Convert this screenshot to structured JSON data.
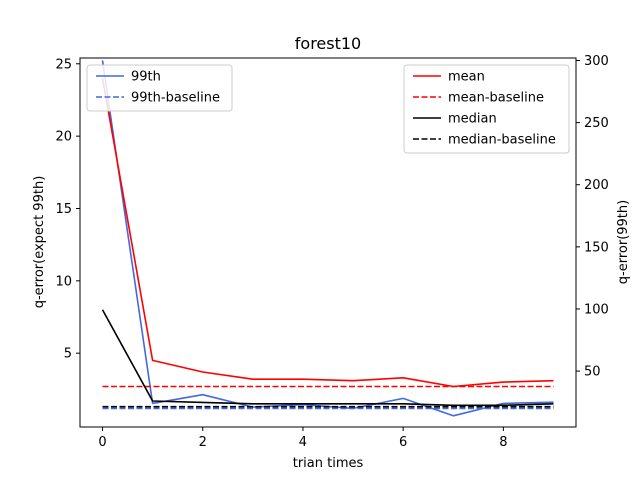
{
  "chart_data": {
    "type": "line",
    "title": "forest10",
    "xlabel": "trian times",
    "ylabel_left": "q-error(expect 99th)",
    "ylabel_right": "q-error(99th)",
    "xlim": [
      -0.45,
      9.45
    ],
    "ylim_left": [
      -0.1,
      25.4
    ],
    "ylim_right": [
      5,
      302
    ],
    "x_ticks": [
      0,
      2,
      4,
      6,
      8
    ],
    "y_ticks_left": [
      5,
      10,
      15,
      20,
      25
    ],
    "y_ticks_right": [
      50,
      100,
      150,
      200,
      250,
      300
    ],
    "x": [
      0,
      1,
      2,
      3,
      4,
      5,
      6,
      7,
      8,
      9
    ],
    "series_left": [
      {
        "name": "mean",
        "color": "#ff0000",
        "dash": "solid",
        "values": [
          24.0,
          4.5,
          3.7,
          3.2,
          3.2,
          3.1,
          3.3,
          2.7,
          3.0,
          3.1
        ]
      },
      {
        "name": "mean-baseline",
        "color": "#ff0000",
        "dash": "dashed",
        "values": [
          2.7,
          2.7,
          2.7,
          2.7,
          2.7,
          2.7,
          2.7,
          2.7,
          2.7,
          2.7
        ]
      },
      {
        "name": "median",
        "color": "#000000",
        "dash": "solid",
        "values": [
          8.0,
          1.7,
          1.6,
          1.5,
          1.5,
          1.5,
          1.5,
          1.4,
          1.4,
          1.5
        ]
      },
      {
        "name": "median-baseline",
        "color": "#000000",
        "dash": "dashed",
        "values": [
          1.3,
          1.3,
          1.3,
          1.3,
          1.3,
          1.3,
          1.3,
          1.3,
          1.3,
          1.3
        ]
      }
    ],
    "series_right": [
      {
        "name": "99th",
        "color": "#4169e1",
        "dash": "solid",
        "values": [
          300,
          24,
          31,
          21,
          23,
          20,
          28,
          14,
          24,
          25
        ]
      },
      {
        "name": "99th-baseline",
        "color": "#4169e1",
        "dash": "dashed",
        "values": [
          20,
          20,
          20,
          20,
          20,
          20,
          20,
          20,
          20,
          20
        ]
      }
    ],
    "legend_left": {
      "position": "upper-left",
      "entries": [
        "99th",
        "99th-baseline"
      ]
    },
    "legend_right": {
      "position": "upper-right",
      "entries": [
        "mean",
        "mean-baseline",
        "median",
        "median-baseline"
      ]
    },
    "grid": false
  }
}
